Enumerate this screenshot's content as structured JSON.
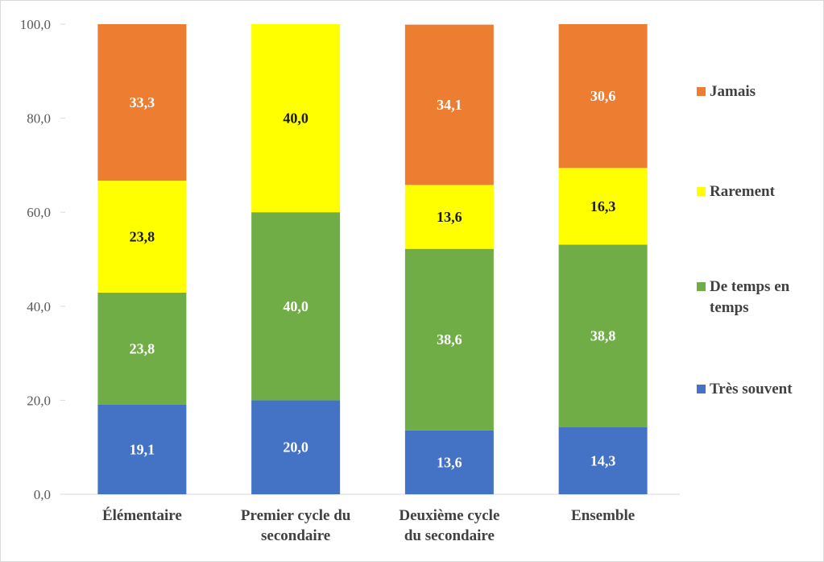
{
  "chart_data": {
    "type": "bar",
    "stacked": true,
    "title": "",
    "xlabel": "",
    "ylabel": "",
    "ylim": [
      0,
      100
    ],
    "yticks": [
      "0,0",
      "20,0",
      "40,0",
      "60,0",
      "80,0",
      "100,0"
    ],
    "ytick_values": [
      0,
      20,
      40,
      60,
      80,
      100
    ],
    "grid": false,
    "legend_position": "right",
    "categories": [
      [
        "Élémentaire"
      ],
      [
        "Premier cycle du",
        "secondaire"
      ],
      [
        "Deuxième cycle",
        "du secondaire"
      ],
      [
        "Ensemble"
      ]
    ],
    "series": [
      {
        "name": "Très souvent",
        "legend_lines": [
          "Très souvent"
        ],
        "color": "#4472C4",
        "label_color": "#ffffff",
        "values": [
          19.1,
          20.0,
          13.6,
          14.3
        ],
        "labels": [
          "19,1",
          "20,0",
          "13,6",
          "14,3"
        ]
      },
      {
        "name": "De temps en temps",
        "legend_lines": [
          "De temps en",
          "temps"
        ],
        "color": "#70AD47",
        "label_color": "#ffffff",
        "values": [
          23.8,
          40.0,
          38.6,
          38.8
        ],
        "labels": [
          "23,8",
          "40,0",
          "38,6",
          "38,8"
        ]
      },
      {
        "name": "Rarement",
        "legend_lines": [
          "Rarement"
        ],
        "color": "#FFFF00",
        "label_color": "#1a1a1a",
        "values": [
          23.8,
          40.0,
          13.6,
          16.3
        ],
        "labels": [
          "23,8",
          "40,0",
          "13,6",
          "16,3"
        ]
      },
      {
        "name": "Jamais",
        "legend_lines": [
          "Jamais"
        ],
        "color": "#ED7D31",
        "label_color": "#ffffff",
        "values": [
          33.3,
          0,
          34.1,
          30.6
        ],
        "labels": [
          "33,3",
          "",
          "34,1",
          "30,6"
        ]
      }
    ],
    "legend_order": [
      3,
      2,
      1,
      0
    ]
  }
}
